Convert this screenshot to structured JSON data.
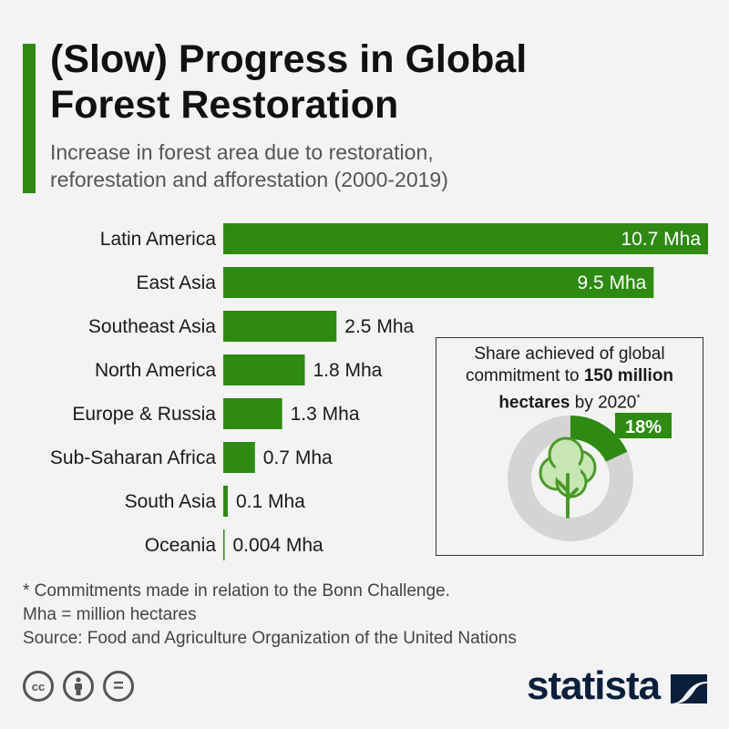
{
  "header": {
    "title_line1": "(Slow) Progress in Global",
    "title_line2": "Forest Restoration",
    "subtitle_line1": "Increase in forest area due to restoration,",
    "subtitle_line2": "reforestation and afforestation (2000-2019)"
  },
  "chart_data": {
    "type": "bar",
    "orientation": "horizontal",
    "categories": [
      "Latin America",
      "East Asia",
      "Southeast Asia",
      "North America",
      "Europe & Russia",
      "Sub-Saharan Africa",
      "South Asia",
      "Oceania"
    ],
    "values": [
      10.7,
      9.5,
      2.5,
      1.8,
      1.3,
      0.7,
      0.1,
      0.004
    ],
    "value_labels": [
      "10.7 Mha",
      "9.5 Mha",
      "2.5 Mha",
      "1.8 Mha",
      "1.3 Mha",
      "0.7 Mha",
      "0.1 Mha",
      "0.004 Mha"
    ],
    "xlim": [
      0,
      10.7
    ],
    "bar_color": "#2e8a12",
    "grid": false
  },
  "inset": {
    "text_line1": "Share achieved of global",
    "text_line2_prefix": "commitment to ",
    "text_line2_bold": "150 million",
    "text_line3_bold": "hectares",
    "text_line3_suffix": " by 2020",
    "text_sup": "*",
    "share_value": 18,
    "share_label": "18%",
    "share_color": "#2e8a12",
    "remainder_color": "#d4d4d4",
    "icon": "tree-icon"
  },
  "footer": {
    "note1": "* Commitments made in relation to the Bonn Challenge.",
    "note2": "Mha = million hectares",
    "source": "Source: Food and Agriculture Organization of the United Nations",
    "license_icons": [
      "cc-icon",
      "by-icon",
      "nd-icon"
    ],
    "cc_text": "cc",
    "nd_text": "=",
    "brand": "statista"
  }
}
